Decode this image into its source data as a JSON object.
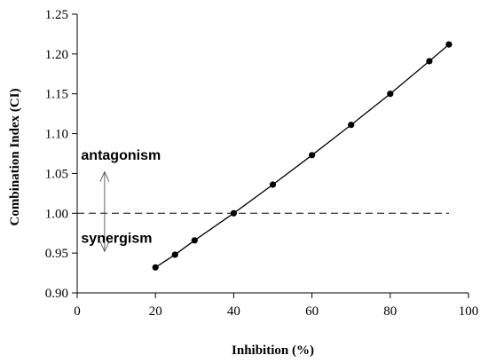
{
  "chart_data": {
    "type": "line",
    "title": "",
    "xlabel": "Inhibition (%)",
    "ylabel": "Combination Index (CI)",
    "xlim": [
      0,
      100
    ],
    "ylim": [
      0.9,
      1.25
    ],
    "x_ticks": [
      "0",
      "20",
      "40",
      "60",
      "80",
      "100"
    ],
    "y_ticks": [
      "0.90",
      "0.95",
      "1.00",
      "1.05",
      "1.10",
      "1.15",
      "1.20",
      "1.25"
    ],
    "grid": false,
    "series": [
      {
        "x": [
          20,
          25,
          30,
          40,
          50,
          60,
          70,
          80,
          90,
          95
        ],
        "y": [
          0.932,
          0.948,
          0.966,
          1.0,
          1.036,
          1.073,
          1.111,
          1.15,
          1.191,
          1.212
        ],
        "marker": "circle",
        "color": "#000000"
      }
    ],
    "reference_line": {
      "y": 1.0,
      "x_range": [
        0,
        95
      ],
      "style": "dashed"
    },
    "annotations": [
      {
        "text": "antagonism",
        "x": 1,
        "y": 1.067
      },
      {
        "text": "synergism",
        "x": 1,
        "y": 0.963
      }
    ],
    "arrow_x": 7
  }
}
